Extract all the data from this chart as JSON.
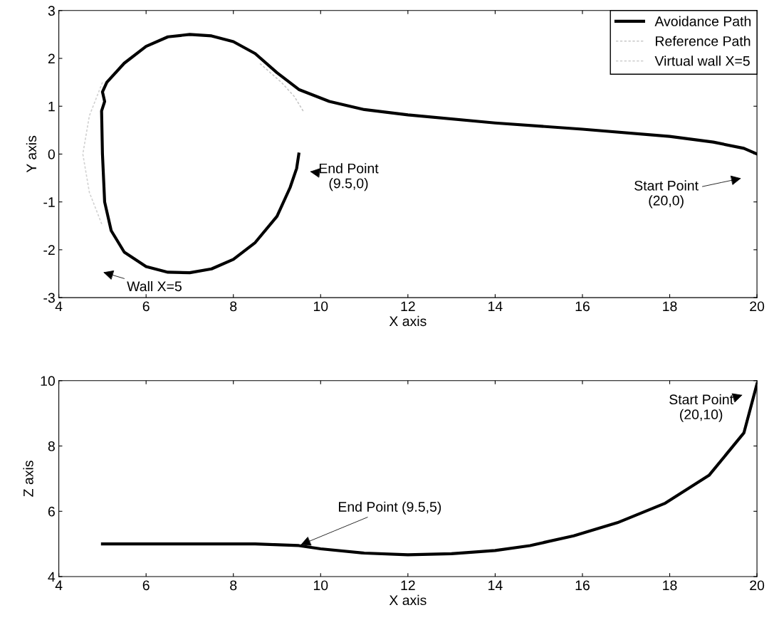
{
  "chart_data": [
    {
      "type": "line",
      "xlabel": "X axis",
      "ylabel": "Y axis",
      "xlim": [
        4,
        20
      ],
      "ylim": [
        -3,
        3
      ],
      "xticks": [
        4,
        6,
        8,
        10,
        12,
        14,
        16,
        18,
        20
      ],
      "yticks": [
        -3,
        -2,
        -1,
        0,
        1,
        2,
        3
      ],
      "grid": false,
      "legend": "top right",
      "marker": "none",
      "series": [
        {
          "name": "Avoidance Path",
          "color": "#000000",
          "line_style": "solid",
          "x": [
            20,
            19.7,
            19,
            18,
            16,
            14,
            12,
            11,
            10.2,
            9.5,
            9,
            8.5,
            8,
            7.5,
            7,
            6.5,
            6,
            5.5,
            5.1,
            5.0,
            5.05,
            4.98,
            5.0,
            5.05,
            5.2,
            5.5,
            6,
            6.5,
            7,
            7.5,
            8,
            8.5,
            9,
            9.3,
            9.45,
            9.5
          ],
          "values": [
            0,
            0.12,
            0.25,
            0.37,
            0.52,
            0.65,
            0.82,
            0.93,
            1.1,
            1.35,
            1.7,
            2.1,
            2.35,
            2.47,
            2.5,
            2.45,
            2.25,
            1.9,
            1.5,
            1.3,
            1.1,
            0.9,
            0,
            -1,
            -1.6,
            -2.05,
            -2.35,
            -2.47,
            -2.48,
            -2.4,
            -2.2,
            -1.85,
            -1.3,
            -0.7,
            -0.3,
            0
          ]
        },
        {
          "name": "Reference Path",
          "color": "#c8c8c8",
          "line_style": "dashed",
          "x": [
            9.6,
            9.4,
            9.1,
            8.6
          ],
          "values": [
            0.9,
            1.2,
            1.5,
            1.9
          ]
        },
        {
          "name": "Virtual wall X=5",
          "color": "#d2d2d2",
          "line_style": "dashed",
          "x": [
            5.0,
            4.7,
            4.55,
            4.7,
            5.0
          ],
          "values": [
            1.5,
            0.8,
            0,
            -0.8,
            -1.5
          ]
        }
      ],
      "annotations": [
        "End Point\n(9.5,0)",
        "Start Point\n(20,0)",
        "Wall X=5"
      ]
    },
    {
      "type": "line",
      "xlabel": "X axis",
      "ylabel": "Z axis",
      "xlim": [
        4,
        20
      ],
      "ylim": [
        4,
        10
      ],
      "xticks": [
        4,
        6,
        8,
        10,
        12,
        14,
        16,
        18,
        20
      ],
      "yticks": [
        4,
        6,
        8,
        10
      ],
      "grid": false,
      "legend": false,
      "marker": "none",
      "series": [
        {
          "color": "#000000",
          "line_style": "solid",
          "x": [
            20,
            19.7,
            18.9,
            17.9,
            16.8,
            15.8,
            14.8,
            14,
            13,
            12,
            11,
            10,
            9.5,
            8.5,
            5
          ],
          "values": [
            9.9,
            8.4,
            7.1,
            6.25,
            5.65,
            5.25,
            4.95,
            4.8,
            4.7,
            4.67,
            4.72,
            4.85,
            4.95,
            5.0,
            5.0
          ]
        }
      ],
      "annotations": [
        {
          "text": "End Point (9.5,5)",
          "x": 9.5,
          "y": 4.95
        },
        "Start Point\n(20,10)"
      ]
    }
  ]
}
